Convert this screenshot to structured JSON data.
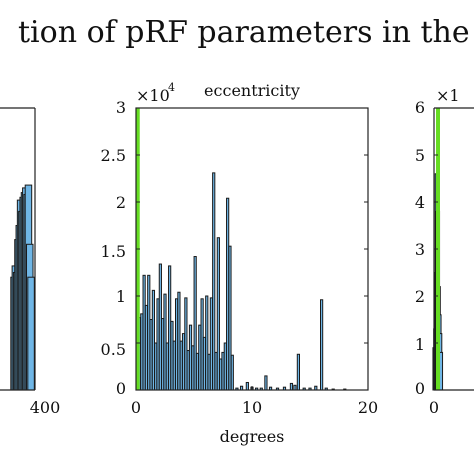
{
  "figure": {
    "title": "tion of pRF parameters in the"
  },
  "chart_data": [
    {
      "type": "bar",
      "title": "",
      "xlabel": "",
      "ylabel": "",
      "xlim": [
        -20,
        400
      ],
      "ylim": [
        0,
        30000
      ],
      "x_ticks": [
        "400"
      ],
      "bar_color": "#6fb6e6",
      "bars": [
        {
          "x": 240,
          "value": 12000
        },
        {
          "x": 250,
          "value": 13200
        },
        {
          "x": 260,
          "value": 12500
        },
        {
          "x": 270,
          "value": 16000
        },
        {
          "x": 280,
          "value": 17500
        },
        {
          "x": 290,
          "value": 20200
        },
        {
          "x": 300,
          "value": 19000
        },
        {
          "x": 310,
          "value": 20500
        },
        {
          "x": 320,
          "value": 21000
        },
        {
          "x": 330,
          "value": 21500
        },
        {
          "x": 340,
          "value": 20800
        },
        {
          "x": 350,
          "value": 21800
        },
        {
          "x": 360,
          "value": 15500
        },
        {
          "x": 370,
          "value": 12000
        }
      ]
    },
    {
      "type": "bar",
      "title": "eccentricity",
      "xlabel": "degrees",
      "ylabel": "",
      "y_multiplier": "×10^4",
      "xlim": [
        0,
        20
      ],
      "ylim": [
        0,
        3
      ],
      "x_ticks": [
        "0",
        "10",
        "20"
      ],
      "y_ticks": [
        "0",
        "0.5",
        "1",
        "1.5",
        "2",
        "2.5",
        "3"
      ],
      "bar_color": "#6fb6e6",
      "highlight": {
        "x": 0.15,
        "color": "#66dd22"
      },
      "bars": [
        {
          "x": 0.1,
          "value": 0.68
        },
        {
          "x": 0.3,
          "value": 0.77
        },
        {
          "x": 0.5,
          "value": 0.81
        },
        {
          "x": 0.7,
          "value": 1.22
        },
        {
          "x": 0.9,
          "value": 0.9
        },
        {
          "x": 1.1,
          "value": 1.22
        },
        {
          "x": 1.3,
          "value": 0.75
        },
        {
          "x": 1.5,
          "value": 1.06
        },
        {
          "x": 1.7,
          "value": 0.5
        },
        {
          "x": 1.9,
          "value": 0.97
        },
        {
          "x": 2.1,
          "value": 1.34
        },
        {
          "x": 2.3,
          "value": 0.76
        },
        {
          "x": 2.5,
          "value": 1.02
        },
        {
          "x": 2.7,
          "value": 0.5
        },
        {
          "x": 2.9,
          "value": 1.32
        },
        {
          "x": 3.1,
          "value": 0.73
        },
        {
          "x": 3.3,
          "value": 0.52
        },
        {
          "x": 3.5,
          "value": 0.97
        },
        {
          "x": 3.7,
          "value": 1.04
        },
        {
          "x": 3.9,
          "value": 0.52
        },
        {
          "x": 4.1,
          "value": 0.6
        },
        {
          "x": 4.3,
          "value": 0.98
        },
        {
          "x": 4.5,
          "value": 0.42
        },
        {
          "x": 4.7,
          "value": 0.69
        },
        {
          "x": 4.9,
          "value": 0.47
        },
        {
          "x": 5.1,
          "value": 1.42
        },
        {
          "x": 5.3,
          "value": 0.39
        },
        {
          "x": 5.5,
          "value": 0.69
        },
        {
          "x": 5.7,
          "value": 0.97
        },
        {
          "x": 5.9,
          "value": 0.56
        },
        {
          "x": 6.1,
          "value": 1.0
        },
        {
          "x": 6.3,
          "value": 0.38
        },
        {
          "x": 6.5,
          "value": 0.98
        },
        {
          "x": 6.7,
          "value": 2.31
        },
        {
          "x": 6.9,
          "value": 0.4
        },
        {
          "x": 7.1,
          "value": 1.62
        },
        {
          "x": 7.3,
          "value": 0.33
        },
        {
          "x": 7.5,
          "value": 0.4
        },
        {
          "x": 7.7,
          "value": 0.5
        },
        {
          "x": 7.9,
          "value": 2.04
        },
        {
          "x": 8.1,
          "value": 1.53
        },
        {
          "x": 8.3,
          "value": 0.37
        },
        {
          "x": 8.7,
          "value": 0.02
        },
        {
          "x": 9.1,
          "value": 0.04
        },
        {
          "x": 9.6,
          "value": 0.08
        },
        {
          "x": 10.0,
          "value": 0.03
        },
        {
          "x": 10.4,
          "value": 0.02
        },
        {
          "x": 10.8,
          "value": 0.02
        },
        {
          "x": 11.2,
          "value": 0.15
        },
        {
          "x": 11.6,
          "value": 0.03
        },
        {
          "x": 12.2,
          "value": 0.02
        },
        {
          "x": 12.8,
          "value": 0.03
        },
        {
          "x": 13.4,
          "value": 0.07
        },
        {
          "x": 13.7,
          "value": 0.05
        },
        {
          "x": 14.0,
          "value": 0.38
        },
        {
          "x": 14.5,
          "value": 0.02
        },
        {
          "x": 15.0,
          "value": 0.02
        },
        {
          "x": 15.5,
          "value": 0.04
        },
        {
          "x": 16.0,
          "value": 0.96
        },
        {
          "x": 16.4,
          "value": 0.02
        },
        {
          "x": 17.0,
          "value": 0.01
        },
        {
          "x": 18.0,
          "value": 0.01
        }
      ]
    },
    {
      "type": "bar",
      "title": "",
      "xlabel": "",
      "ylabel": "",
      "y_multiplier": "×1",
      "xlim": [
        0,
        16
      ],
      "ylim": [
        0,
        6
      ],
      "x_ticks": [
        "0"
      ],
      "y_ticks": [
        "0",
        "1",
        "2",
        "3",
        "4",
        "5",
        "6"
      ],
      "bar_color": "#6fb6e6",
      "highlight": {
        "x": 1.6,
        "color": "#66dd22"
      },
      "bars": [
        {
          "x": 0.3,
          "value": 0.9
        },
        {
          "x": 0.6,
          "value": 1.3
        },
        {
          "x": 0.9,
          "value": 2.5
        },
        {
          "x": 1.2,
          "value": 4.6
        },
        {
          "x": 1.5,
          "value": 3.8
        },
        {
          "x": 1.8,
          "value": 2.2
        },
        {
          "x": 2.1,
          "value": 1.6
        },
        {
          "x": 2.4,
          "value": 1.2
        },
        {
          "x": 2.7,
          "value": 0.8
        }
      ]
    }
  ]
}
